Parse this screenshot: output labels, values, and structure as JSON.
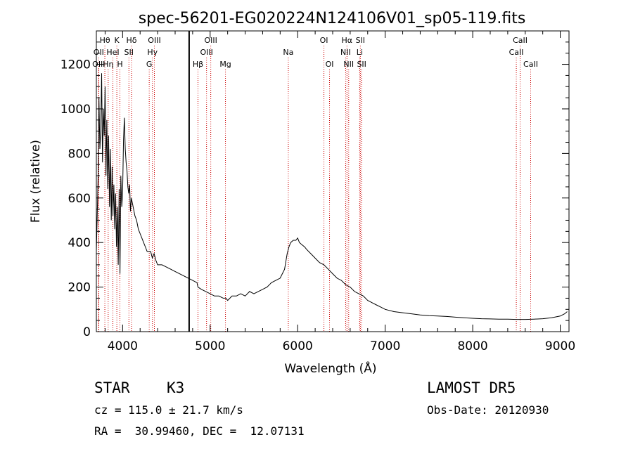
{
  "chart_data": {
    "type": "line",
    "title": "spec-56201-EG020224N124106V01_sp05-119.fits",
    "xlabel": "Wavelength (Å)",
    "ylabel": "Flux (relative)",
    "xlim": [
      3700,
      9100
    ],
    "ylim": [
      0,
      1350
    ],
    "x_ticks": [
      4000,
      5000,
      6000,
      7000,
      8000,
      9000
    ],
    "x_tick_labels": [
      "4000",
      "5000",
      "6000",
      "7000",
      "8000",
      "9000"
    ],
    "y_ticks": [
      0,
      200,
      400,
      600,
      800,
      1000,
      1200
    ],
    "y_tick_labels": [
      "0",
      "200",
      "400",
      "600",
      "800",
      "1000",
      "1200"
    ],
    "grid": false,
    "series": [
      {
        "color": "#000000",
        "x": [
          3700,
          3710,
          3720,
          3730,
          3740,
          3750,
          3760,
          3770,
          3780,
          3790,
          3800,
          3810,
          3820,
          3830,
          3840,
          3850,
          3860,
          3870,
          3880,
          3890,
          3900,
          3910,
          3920,
          3930,
          3940,
          3950,
          3960,
          3970,
          3980,
          3990,
          4000,
          4010,
          4020,
          4030,
          4040,
          4050,
          4060,
          4070,
          4080,
          4090,
          4100,
          4120,
          4140,
          4160,
          4180,
          4200,
          4220,
          4240,
          4260,
          4280,
          4300,
          4320,
          4340,
          4360,
          4380,
          4400,
          4450,
          4500,
          4550,
          4600,
          4650,
          4700,
          4750,
          4800,
          4850,
          4860,
          4900,
          4950,
          5000,
          5050,
          5100,
          5150,
          5180,
          5200,
          5250,
          5300,
          5350,
          5400,
          5450,
          5500,
          5550,
          5600,
          5650,
          5700,
          5750,
          5800,
          5850,
          5880,
          5900,
          5920,
          5950,
          5980,
          6000,
          6020,
          6050,
          6080,
          6100,
          6150,
          6200,
          6250,
          6300,
          6350,
          6400,
          6450,
          6500,
          6550,
          6600,
          6650,
          6700,
          6750,
          6800,
          6850,
          6900,
          6950,
          7000,
          7100,
          7200,
          7300,
          7400,
          7500,
          7600,
          7700,
          7800,
          7900,
          8000,
          8100,
          8200,
          8300,
          8400,
          8500,
          8600,
          8700,
          8800,
          8900,
          9000,
          9050,
          9080
        ],
        "y": [
          360,
          520,
          700,
          1050,
          820,
          900,
          1160,
          760,
          1000,
          880,
          1100,
          700,
          950,
          640,
          880,
          560,
          820,
          500,
          740,
          520,
          660,
          460,
          620,
          380,
          560,
          300,
          640,
          260,
          700,
          560,
          620,
          860,
          960,
          820,
          760,
          720,
          650,
          620,
          660,
          540,
          600,
          560,
          520,
          500,
          460,
          440,
          420,
          400,
          380,
          360,
          360,
          360,
          330,
          350,
          320,
          300,
          300,
          290,
          280,
          270,
          260,
          250,
          240,
          230,
          220,
          200,
          190,
          180,
          170,
          160,
          160,
          150,
          150,
          140,
          160,
          160,
          170,
          160,
          180,
          170,
          180,
          190,
          200,
          220,
          230,
          240,
          280,
          350,
          380,
          400,
          410,
          410,
          420,
          400,
          390,
          380,
          370,
          350,
          330,
          310,
          300,
          280,
          260,
          240,
          230,
          210,
          200,
          180,
          170,
          160,
          140,
          130,
          120,
          110,
          100,
          90,
          85,
          80,
          75,
          72,
          70,
          68,
          65,
          62,
          60,
          58,
          57,
          56,
          56,
          55,
          55,
          56,
          58,
          62,
          70,
          80,
          90
        ],
        "values_note": ""
      }
    ],
    "marker_line_x": 4760,
    "spectral_lines": [
      {
        "label": "Hθ",
        "x": 3797,
        "row": 0
      },
      {
        "label": "OII",
        "x": 3727,
        "row": 1
      },
      {
        "label": "OIII",
        "x": 3727,
        "row": 2
      },
      {
        "label": "Hη",
        "x": 3835,
        "row": 2
      },
      {
        "label": "K",
        "x": 3934,
        "row": 0
      },
      {
        "label": "HeI",
        "x": 3889,
        "row": 1
      },
      {
        "label": "H",
        "x": 3969,
        "row": 2
      },
      {
        "label": "Hδ",
        "x": 4102,
        "row": 0
      },
      {
        "label": "SII",
        "x": 4072,
        "row": 1
      },
      {
        "label": "OIII",
        "x": 4363,
        "row": 0
      },
      {
        "label": "Hγ",
        "x": 4341,
        "row": 1
      },
      {
        "label": "G",
        "x": 4304,
        "row": 2
      },
      {
        "label": "Hβ",
        "x": 4861,
        "row": 2
      },
      {
        "label": "OIII",
        "x": 5007,
        "row": 0
      },
      {
        "label": "OIII",
        "x": 4959,
        "row": 1
      },
      {
        "label": "Mg",
        "x": 5175,
        "row": 2
      },
      {
        "label": "Na",
        "x": 5893,
        "row": 1
      },
      {
        "label": "OI",
        "x": 6300,
        "row": 0
      },
      {
        "label": "OI",
        "x": 6364,
        "row": 2
      },
      {
        "label": "Hα",
        "x": 6563,
        "row": 0
      },
      {
        "label": "NII",
        "x": 6548,
        "row": 1
      },
      {
        "label": "NII",
        "x": 6583,
        "row": 2
      },
      {
        "label": "SII",
        "x": 6716,
        "row": 0
      },
      {
        "label": "Li",
        "x": 6708,
        "row": 1
      },
      {
        "label": "SII",
        "x": 6731,
        "row": 2
      },
      {
        "label": "CaII",
        "x": 8542,
        "row": 0
      },
      {
        "label": "CaII",
        "x": 8498,
        "row": 1
      },
      {
        "label": "CaII",
        "x": 8662,
        "row": 2
      }
    ],
    "line_color": "#cc0000"
  },
  "info": {
    "class": "STAR",
    "subclass": "K3",
    "survey": "LAMOST DR5",
    "cz": "cz = 115.0 ± 21.7 km/s",
    "obs_date": "Obs-Date: 20120930",
    "coords": "RA =  30.99460, DEC =  12.07131"
  }
}
